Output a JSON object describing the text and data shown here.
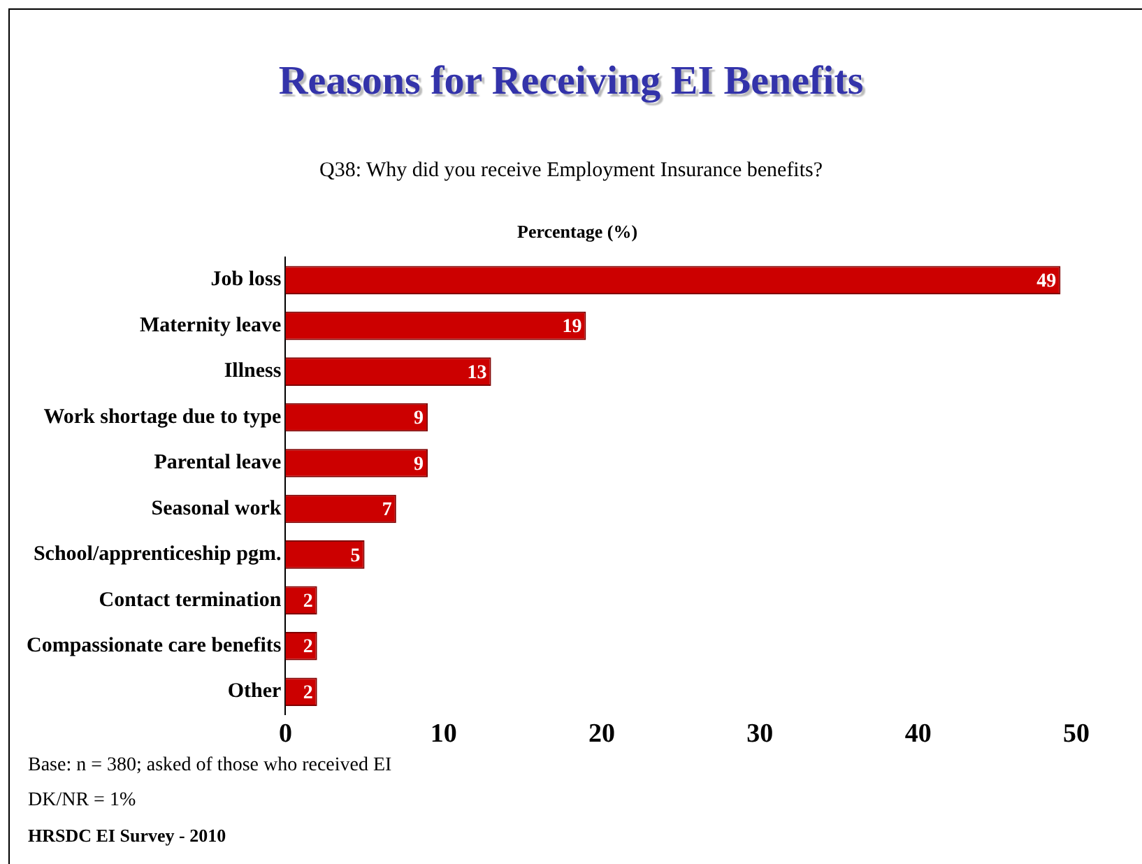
{
  "chart_data": {
    "type": "bar",
    "title": "Reasons for Receiving EI Benefits",
    "subtitle": "Q38: Why did you receive Employment Insurance benefits?",
    "xlabel": "Percentage (%)",
    "orientation": "horizontal",
    "categories": [
      "Job loss",
      "Maternity leave",
      "Illness",
      "Work shortage due to type",
      "Parental leave",
      "Seasonal work",
      "School/apprenticeship pgm.",
      "Contact termination",
      "Compassionate care benefits",
      "Other"
    ],
    "values": [
      49,
      19,
      13,
      9,
      9,
      7,
      5,
      2,
      2,
      2
    ],
    "color": "#cc0000",
    "xlim": [
      0,
      50
    ],
    "xticks": [
      0,
      10,
      20,
      30,
      40,
      50
    ],
    "grid": false,
    "legend": false,
    "data_labels": true,
    "annotations": [
      "Base: n = 380; asked of those who received EI",
      "DK/NR = 1%",
      "HRSDC EI Survey - 2010"
    ]
  }
}
